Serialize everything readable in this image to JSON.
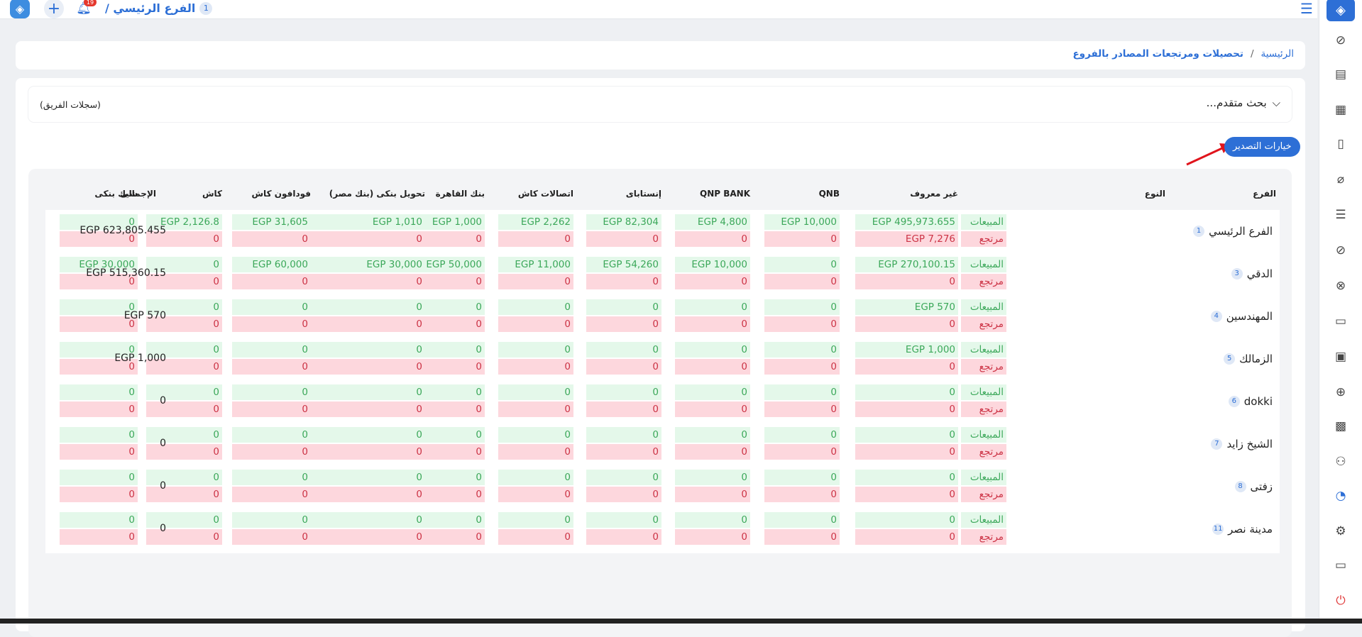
{
  "topbar": {
    "logo_icon": "app-logo-icon",
    "notif_count": "19",
    "branch_num": "1",
    "branch_name": "الفرع الرئيسي /"
  },
  "sidebar": {
    "icons": [
      "dashboard-icon",
      "pos-icon",
      "store-icon",
      "invoice-icon",
      "tag-icon",
      "document-icon",
      "tag-edit-icon",
      "tag-remove-icon",
      "cashier-icon",
      "cash-settings-icon",
      "add-item-icon",
      "money-icon",
      "user-money-icon",
      "reports-icon",
      "settings-icon",
      "display-icon",
      "power-icon"
    ]
  },
  "breadcrumb": {
    "home": "الرئيسية",
    "sep": "/",
    "current": "تحصيلات ومرتجعات المصادر بالفروع"
  },
  "search": {
    "left_label": "(سجلات الفريق)",
    "advanced": "بحث متقدم..."
  },
  "export_label": "خيارات التصدير",
  "columns": {
    "branch": "الفرع",
    "type": "النوع",
    "unknown": "غير معروف",
    "qnb": "QNB",
    "qnp": "QNP BANK",
    "instapay": "إنستاباى",
    "etisalat": "اتصالات كاش",
    "cairo": "بنك القاهرة",
    "transfer": "تحويل بنكى (بنك مصر)",
    "vodafone": "فودافون كاش",
    "cash": "كاش",
    "cheque": "شيك بنكى",
    "total": "الإجمالى"
  },
  "labels": {
    "sales": "المبيعات",
    "returns": "مرتجع"
  },
  "rows": [
    {
      "num": "1",
      "name": "الفرع الرئيسي",
      "sales": [
        "EGP 495,973.655",
        "EGP 10,000",
        "EGP 4,800",
        "EGP 82,304",
        "EGP 2,262",
        "EGP 1,000",
        "EGP 1,010",
        "EGP 31,605",
        "EGP 2,126.8",
        "0"
      ],
      "returns": [
        "EGP 7,276",
        "0",
        "0",
        "0",
        "0",
        "0",
        "0",
        "0",
        "0",
        "0"
      ],
      "total": "EGP 623,805.455"
    },
    {
      "num": "3",
      "name": "الدقي",
      "sales": [
        "EGP 270,100.15",
        "0",
        "EGP 10,000",
        "EGP 54,260",
        "EGP 11,000",
        "EGP 50,000",
        "EGP 30,000",
        "EGP 60,000",
        "0",
        "EGP 30,000"
      ],
      "returns": [
        "0",
        "0",
        "0",
        "0",
        "0",
        "0",
        "0",
        "0",
        "0",
        "0"
      ],
      "total": "EGP 515,360.15"
    },
    {
      "num": "4",
      "name": "المهندسين",
      "sales": [
        "EGP 570",
        "0",
        "0",
        "0",
        "0",
        "0",
        "0",
        "0",
        "0",
        "0"
      ],
      "returns": [
        "0",
        "0",
        "0",
        "0",
        "0",
        "0",
        "0",
        "0",
        "0",
        "0"
      ],
      "total": "EGP 570"
    },
    {
      "num": "5",
      "name": "الزمالك",
      "sales": [
        "EGP 1,000",
        "0",
        "0",
        "0",
        "0",
        "0",
        "0",
        "0",
        "0",
        "0"
      ],
      "returns": [
        "0",
        "0",
        "0",
        "0",
        "0",
        "0",
        "0",
        "0",
        "0",
        "0"
      ],
      "total": "EGP 1,000"
    },
    {
      "num": "6",
      "name": "dokki",
      "sales": [
        "0",
        "0",
        "0",
        "0",
        "0",
        "0",
        "0",
        "0",
        "0",
        "0"
      ],
      "returns": [
        "0",
        "0",
        "0",
        "0",
        "0",
        "0",
        "0",
        "0",
        "0",
        "0"
      ],
      "total": "0"
    },
    {
      "num": "7",
      "name": "الشيخ زايد",
      "sales": [
        "0",
        "0",
        "0",
        "0",
        "0",
        "0",
        "0",
        "0",
        "0",
        "0"
      ],
      "returns": [
        "0",
        "0",
        "0",
        "0",
        "0",
        "0",
        "0",
        "0",
        "0",
        "0"
      ],
      "total": "0"
    },
    {
      "num": "8",
      "name": "زفتى",
      "sales": [
        "0",
        "0",
        "0",
        "0",
        "0",
        "0",
        "0",
        "0",
        "0",
        "0"
      ],
      "returns": [
        "0",
        "0",
        "0",
        "0",
        "0",
        "0",
        "0",
        "0",
        "0",
        "0"
      ],
      "total": "0"
    },
    {
      "num": "11",
      "name": "مدينة نصر",
      "sales": [
        "0",
        "0",
        "0",
        "0",
        "0",
        "0",
        "0",
        "0",
        "0",
        "0"
      ],
      "returns": [
        "0",
        "0",
        "0",
        "0",
        "0",
        "0",
        "0",
        "0",
        "0",
        "0"
      ],
      "total": "0"
    }
  ]
}
